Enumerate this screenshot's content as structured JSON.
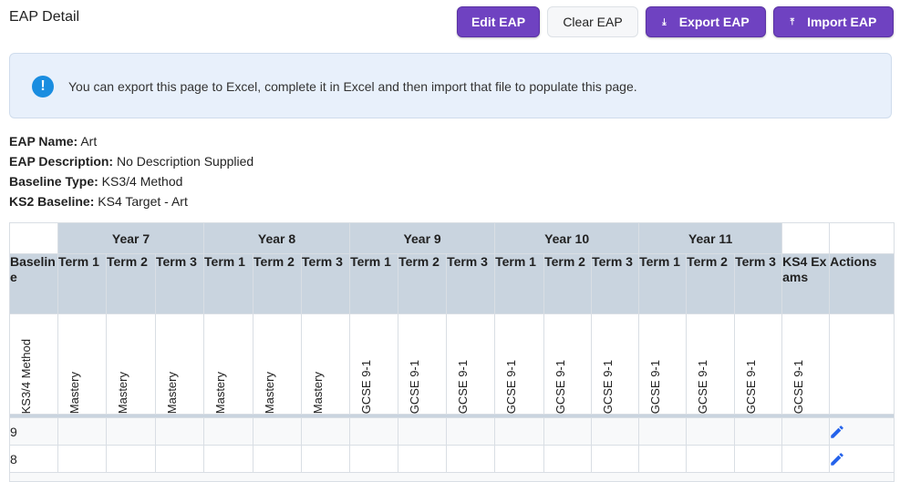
{
  "page": {
    "title": "EAP Detail"
  },
  "toolbar": {
    "edit_label": "Edit EAP",
    "clear_label": "Clear EAP",
    "export_label": "Export EAP",
    "export_icon": "download-icon",
    "import_label": "Import EAP",
    "import_icon": "upload-icon"
  },
  "info": {
    "icon": "info-icon",
    "text": "You can export this page to Excel, complete it in Excel and then import that file to populate this page."
  },
  "details": {
    "name_label": "EAP Name:",
    "name_value": " Art",
    "description_label": "EAP Description:",
    "description_value": " No Description Supplied",
    "baseline_type_label": "Baseline Type:",
    "baseline_type_value": " KS3/4 Method",
    "ks2_label": "KS2 Baseline:",
    "ks2_value": " KS4 Target - Art"
  },
  "table": {
    "years": [
      "Year 7",
      "Year 8",
      "Year 9",
      "Year 10",
      "Year 11"
    ],
    "columns": [
      "Baseline",
      "Term 1",
      "Term 2",
      "Term 3",
      "Term 1",
      "Term 2",
      "Term 3",
      "Term 1",
      "Term 2",
      "Term 3",
      "Term 1",
      "Term 2",
      "Term 3",
      "Term 1",
      "Term 2",
      "Term 3",
      "KS4 Exams",
      "Actions"
    ],
    "methods": [
      "KS3/4 Method",
      "Mastery",
      "Mastery",
      "Mastery",
      "Mastery",
      "Mastery",
      "Mastery",
      "GCSE 9-1",
      "GCSE 9-1",
      "GCSE 9-1",
      "GCSE 9-1",
      "GCSE 9-1",
      "GCSE 9-1",
      "GCSE 9-1",
      "GCSE 9-1",
      "GCSE 9-1",
      "GCSE 9-1",
      ""
    ],
    "rows": [
      {
        "baseline": "9",
        "action_icon": "pencil-icon"
      },
      {
        "baseline": "8",
        "action_icon": "pencil-icon"
      }
    ]
  },
  "colors": {
    "accent": "#6f42c1",
    "header_bg": "#c9d4df",
    "info_bg": "#e8f0fb",
    "info_icon": "#1a8de0",
    "edit_icon": "#2563eb"
  }
}
